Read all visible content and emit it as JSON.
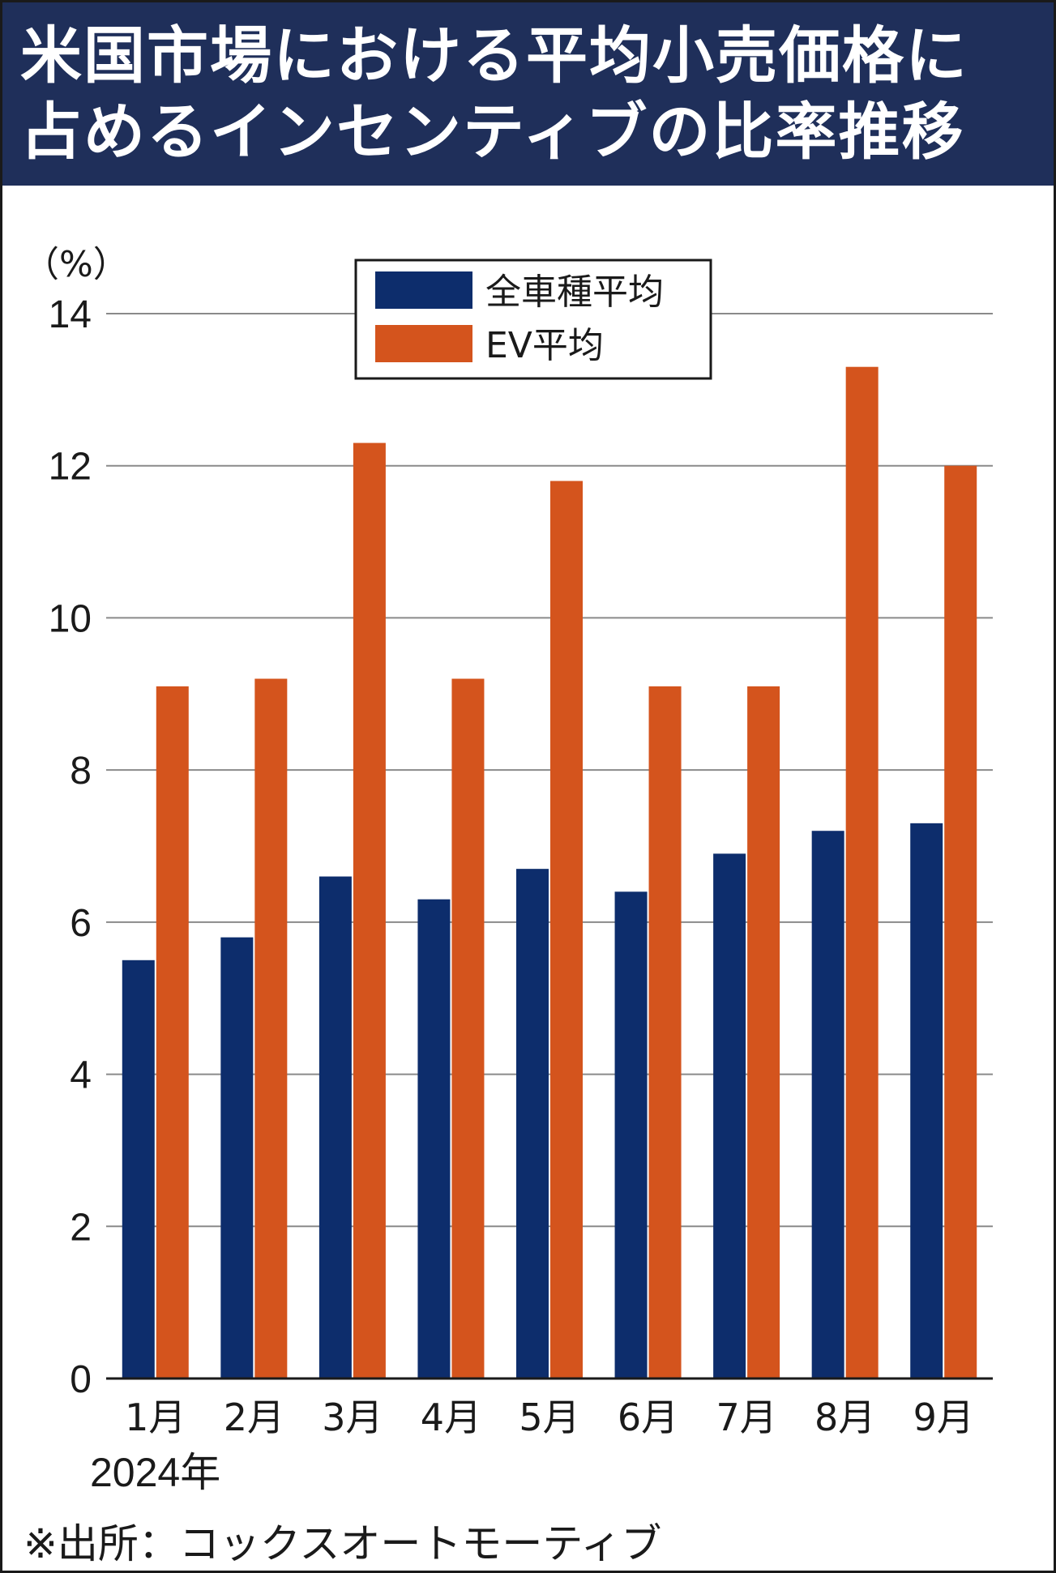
{
  "title": {
    "line1": "米国市場における平均小売価格に",
    "line2": "占めるインセンティブの比率推移"
  },
  "chart_data": {
    "type": "bar",
    "unit": "（%）",
    "categories": [
      "1月",
      "2月",
      "3月",
      "4月",
      "5月",
      "6月",
      "7月",
      "8月",
      "9月"
    ],
    "series": [
      {
        "name": "全車種平均",
        "color": "#0d2d6c",
        "values": [
          5.5,
          5.8,
          6.6,
          6.3,
          6.7,
          6.4,
          6.9,
          7.2,
          7.3
        ]
      },
      {
        "name": "EV平均",
        "color": "#d4541d",
        "values": [
          9.1,
          9.2,
          12.3,
          9.2,
          11.8,
          9.1,
          9.1,
          13.3,
          12.0
        ]
      }
    ],
    "ylim": [
      0,
      14
    ],
    "yticks": [
      0,
      2,
      4,
      6,
      8,
      10,
      12,
      14
    ],
    "grid": true,
    "legend_position": "top-center"
  },
  "year_label": "2024年",
  "source": "※出所：コックスオートモーティブ"
}
